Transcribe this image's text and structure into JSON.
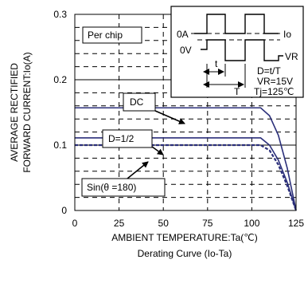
{
  "chart_data": {
    "type": "line",
    "caption": "Derating Curve (Io-Ta)",
    "xlabel": "AMBIENT TEMPERATURE:Ta(℃)",
    "ylabel": [
      "AVERAGE RECTIFIED",
      "FORWARD CURRENT:Io(A)"
    ],
    "xlim": [
      0,
      125
    ],
    "ylim": [
      0,
      0.3
    ],
    "xticks": [
      0,
      25,
      50,
      75,
      100,
      125
    ],
    "yticks": [
      0,
      0.1,
      0.2,
      0.3
    ],
    "grid": "dashed",
    "series": [
      {
        "name": "DC",
        "x": [
          0,
          105,
          110,
          115,
          120,
          125
        ],
        "y": [
          0.157,
          0.157,
          0.145,
          0.115,
          0.065,
          0
        ]
      },
      {
        "name": "D=1/2",
        "x": [
          0,
          105,
          110,
          115,
          120,
          125
        ],
        "y": [
          0.111,
          0.111,
          0.1,
          0.077,
          0.043,
          0
        ]
      },
      {
        "name": "Sin(θ =180)",
        "x": [
          0,
          105,
          110,
          115,
          120,
          125
        ],
        "y": [
          0.1,
          0.1,
          0.092,
          0.07,
          0.038,
          0
        ]
      }
    ],
    "annotations": {
      "per_chip": "Per chip",
      "inset": {
        "label_0a": "0A",
        "label_0v": "0V",
        "label_io": "Io",
        "label_vr": "VR",
        "label_t_small": "t",
        "label_t_big": "T",
        "conditions": [
          "D=t/T",
          "VR=15V",
          "Tj=125℃"
        ]
      }
    }
  }
}
